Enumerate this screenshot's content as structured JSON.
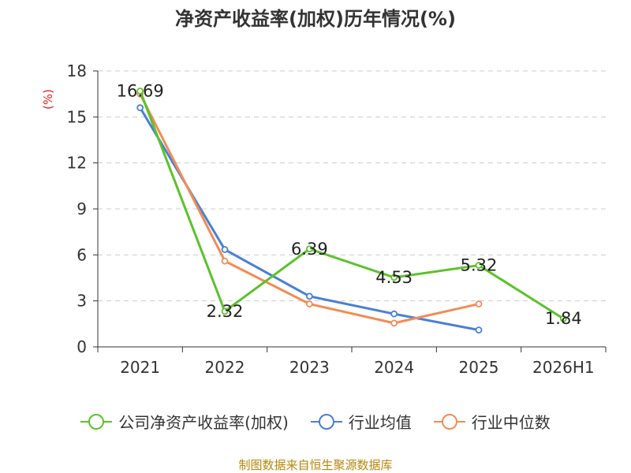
{
  "chart_data": {
    "type": "line",
    "title": "净资产收益率(加权)历年情况(%)",
    "ylabel": "(%)",
    "xlabel": "",
    "categories": [
      "2021",
      "2022",
      "2023",
      "2024",
      "2025",
      "2026H1"
    ],
    "ylim": [
      0,
      18
    ],
    "yticks": [
      "0",
      "3",
      "6",
      "9",
      "12",
      "15",
      "18"
    ],
    "grid": true,
    "legend_position": "bottom",
    "series": [
      {
        "name": "公司净资产收益率(加权)",
        "color": "#5cc22a",
        "values": [
          16.69,
          2.32,
          6.39,
          4.53,
          5.32,
          1.84
        ],
        "labels": [
          "16.69",
          "2.32",
          "6.39",
          "4.53",
          "5.32",
          "1.84"
        ]
      },
      {
        "name": "行业均值",
        "color": "#4a7fd6",
        "values": [
          15.6,
          6.35,
          3.3,
          2.15,
          1.1,
          null
        ]
      },
      {
        "name": "行业中位数",
        "color": "#f28c55",
        "values": [
          16.5,
          5.6,
          2.8,
          1.55,
          2.8,
          null
        ]
      }
    ]
  },
  "source": "制图数据来自恒生聚源数据库"
}
